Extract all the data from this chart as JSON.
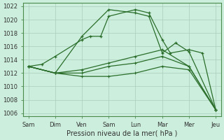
{
  "xlabel": "Pression niveau de la mer( hPa )",
  "background_color": "#cceedd",
  "grid_color": "#aaccbb",
  "line_color": "#2a6e2a",
  "x_labels": [
    "Sam",
    "Dim",
    "Ven",
    "Sam",
    "Lun",
    "Mar",
    "Mer",
    "Jeu"
  ],
  "x_positions": [
    0,
    1,
    2,
    3,
    4,
    5,
    6,
    7
  ],
  "ylim": [
    1005.5,
    1022.5
  ],
  "yticks": [
    1006,
    1008,
    1010,
    1012,
    1014,
    1016,
    1018,
    1020,
    1022
  ],
  "line1_x": [
    0,
    0.5,
    1,
    2,
    2.3,
    2.7,
    3,
    4,
    4.5,
    5,
    5.3,
    6,
    6.5,
    7
  ],
  "line1_y": [
    1013.0,
    1013.3,
    1014.5,
    1017.0,
    1017.5,
    1017.5,
    1020.5,
    1021.5,
    1021.0,
    1017.0,
    1015.0,
    1015.5,
    1015.0,
    1006.5
  ],
  "line2_x": [
    0,
    1,
    2,
    3,
    4,
    4.5,
    5,
    5.5,
    6,
    7
  ],
  "line2_y": [
    1013.0,
    1012.0,
    1017.5,
    1021.5,
    1021.0,
    1020.5,
    1015.0,
    1016.5,
    1015.2,
    1006.5
  ],
  "line3_x": [
    0,
    1,
    2,
    3,
    4,
    5,
    6,
    7
  ],
  "line3_y": [
    1013.0,
    1012.0,
    1012.5,
    1013.5,
    1014.5,
    1015.5,
    1013.0,
    1006.5
  ],
  "line4_x": [
    0,
    1,
    2,
    3,
    4,
    5,
    6,
    7
  ],
  "line4_y": [
    1013.0,
    1012.0,
    1012.0,
    1013.0,
    1013.5,
    1014.5,
    1013.0,
    1006.5
  ],
  "line5_x": [
    0,
    1,
    2,
    3,
    4,
    5,
    6,
    7
  ],
  "line5_y": [
    1013.0,
    1012.0,
    1011.5,
    1011.5,
    1012.0,
    1013.0,
    1012.5,
    1006.5
  ]
}
